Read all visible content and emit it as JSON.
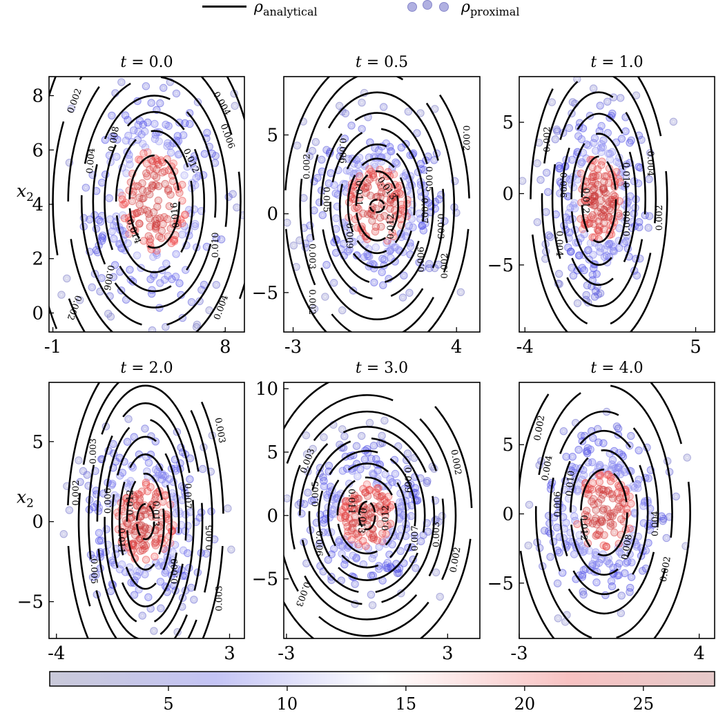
{
  "legend": {
    "line_label_symbol": "ρ",
    "line_label_sub": "analytical",
    "dots_label_symbol": "ρ",
    "dots_label_sub": "proximal"
  },
  "colorbar": {
    "ticks": [
      5,
      10,
      15,
      20,
      25
    ],
    "range": [
      0,
      28
    ],
    "colors": [
      "#c8c8dc",
      "#c6c6f6",
      "#ffffff",
      "#f8c4c4",
      "#e6c8c8"
    ]
  },
  "chart_data": [
    {
      "type": "scatter",
      "title": "t = 0.0",
      "ylabel": "x2",
      "xticks": [
        "-1",
        "8"
      ],
      "yticks": [
        "0",
        "2",
        "4",
        "6",
        "8"
      ],
      "xlim": [
        -1.2,
        9.0
      ],
      "ylim": [
        -0.7,
        8.7
      ],
      "center": [
        4.3,
        4.1
      ],
      "contour_levels": [
        "0.002",
        "0.004",
        "0.006",
        "0.008",
        "0.010",
        "0.012",
        "0.014",
        "0.016"
      ],
      "contour_labels": [
        {
          "text": "0.002",
          "x": 0.15,
          "y": 7.8,
          "rot": -70
        },
        {
          "text": "0.004",
          "x": 1.0,
          "y": 5.6,
          "rot": -85
        },
        {
          "text": "0.008",
          "x": 2.2,
          "y": 6.4,
          "rot": -80
        },
        {
          "text": "0.004",
          "x": 7.8,
          "y": 7.7,
          "rot": 60
        },
        {
          "text": "0.006",
          "x": 8.1,
          "y": 6.5,
          "rot": 70
        },
        {
          "text": "0.012",
          "x": 6.2,
          "y": 5.6,
          "rot": 65
        },
        {
          "text": "0.016",
          "x": 5.4,
          "y": 3.6,
          "rot": -95
        },
        {
          "text": "0.014",
          "x": 3.2,
          "y": 3.0,
          "rot": 70
        },
        {
          "text": "0.010",
          "x": 7.5,
          "y": 2.5,
          "rot": -90
        },
        {
          "text": "0.006",
          "x": 1.9,
          "y": 1.3,
          "rot": 100
        },
        {
          "text": "0.002",
          "x": 0.1,
          "y": 0.2,
          "rot": 110
        },
        {
          "text": "0.004",
          "x": 7.8,
          "y": 0.2,
          "rot": -70
        }
      ],
      "contours": [
        {
          "level": 0.016,
          "a": 1.3,
          "b": 1.7
        },
        {
          "level": 0.014,
          "a": 2.0,
          "b": 2.6
        },
        {
          "level": 0.012,
          "a": 2.6,
          "b": 3.3
        },
        {
          "level": 0.01,
          "a": 3.2,
          "b": 3.9
        },
        {
          "level": 0.008,
          "a": 3.8,
          "b": 4.6
        },
        {
          "level": 0.006,
          "a": 4.5,
          "b": 5.5
        },
        {
          "level": 0.004,
          "a": 5.3,
          "b": 6.6
        },
        {
          "level": 0.002,
          "a": 6.3,
          "b": 8.0
        }
      ],
      "seed": 11,
      "sx": 1.8,
      "sy": 2.0,
      "n_points": 330
    },
    {
      "type": "scatter",
      "title": "t = 0.5",
      "ylabel": "",
      "xticks": [
        "-3",
        "4"
      ],
      "yticks": [
        "−5",
        "0",
        "5"
      ],
      "xlim": [
        -3.4,
        5.0
      ],
      "ylim": [
        -7.5,
        8.7
      ],
      "center": [
        0.6,
        0.5
      ],
      "contour_levels": [
        "0.002",
        "0.003",
        "0.005",
        "0.006",
        "0.007",
        "0.009",
        "0.011",
        "0.012",
        "0.013"
      ],
      "contour_labels": [
        {
          "text": "0.002",
          "x": -2.4,
          "y": 3.0,
          "rot": -90
        },
        {
          "text": "0.006",
          "x": -0.9,
          "y": 4.0,
          "rot": 90
        },
        {
          "text": "0.005",
          "x": -1.6,
          "y": 0.9,
          "rot": 90
        },
        {
          "text": "0.011",
          "x": -0.2,
          "y": 1.3,
          "rot": 90
        },
        {
          "text": "0.013",
          "x": 1.0,
          "y": 1.6,
          "rot": 55
        },
        {
          "text": "0.012",
          "x": 1.2,
          "y": -0.8,
          "rot": -90
        },
        {
          "text": "0.009",
          "x": -0.6,
          "y": -1.4,
          "rot": 90
        },
        {
          "text": "0.003",
          "x": -2.2,
          "y": -2.7,
          "rot": 90
        },
        {
          "text": "0.002",
          "x": -2.2,
          "y": -5.6,
          "rot": 90
        },
        {
          "text": "0.007",
          "x": 2.6,
          "y": 0.2,
          "rot": 90
        },
        {
          "text": "0.005",
          "x": 2.8,
          "y": 2.2,
          "rot": 90
        },
        {
          "text": "0.003",
          "x": 3.3,
          "y": -0.8,
          "rot": 90
        },
        {
          "text": "0.006",
          "x": 2.5,
          "y": -2.9,
          "rot": -90
        },
        {
          "text": "0.002",
          "x": 3.5,
          "y": -3.3,
          "rot": -90
        },
        {
          "text": "0.002",
          "x": 4.4,
          "y": 4.8,
          "rot": 90
        }
      ],
      "contours": [
        {
          "level": 0.013,
          "a": 0.3,
          "b": 0.4
        },
        {
          "level": 0.012,
          "a": 0.9,
          "b": 2.2
        },
        {
          "level": 0.011,
          "a": 1.25,
          "b": 3.0
        },
        {
          "level": 0.009,
          "a": 1.6,
          "b": 3.9
        },
        {
          "level": 0.007,
          "a": 2.0,
          "b": 4.9
        },
        {
          "level": 0.006,
          "a": 2.4,
          "b": 5.9
        },
        {
          "level": 0.005,
          "a": 2.85,
          "b": 7.2
        },
        {
          "level": 0.003,
          "a": 3.3,
          "b": 8.5
        },
        {
          "level": 0.002,
          "a": 3.95,
          "b": 9.6
        }
      ],
      "seed": 23,
      "sx": 1.4,
      "sy": 2.6,
      "n_points": 330
    },
    {
      "type": "scatter",
      "title": "t = 1.0",
      "ylabel": "",
      "xticks": [
        "-4",
        "5"
      ],
      "yticks": [
        "−5",
        "0",
        "5"
      ],
      "xlim": [
        -4.3,
        6.0
      ],
      "ylim": [
        -9.7,
        8.2
      ],
      "center": [
        -0.1,
        -0.4
      ],
      "contour_levels": [
        "0.002",
        "0.004",
        "0.006",
        "0.008",
        "0.010",
        "0.012"
      ],
      "contour_labels": [
        {
          "text": "0.002",
          "x": -2.8,
          "y": 3.8,
          "rot": -90
        },
        {
          "text": "0.006",
          "x": -2.0,
          "y": 0.6,
          "rot": 90
        },
        {
          "text": "0.004",
          "x": -2.2,
          "y": -3.5,
          "rot": 90
        },
        {
          "text": "0.012",
          "x": -0.8,
          "y": -0.5,
          "rot": 90
        },
        {
          "text": "0.010",
          "x": 1.3,
          "y": 1.3,
          "rot": 90
        },
        {
          "text": "0.008",
          "x": 1.4,
          "y": -2.1,
          "rot": -90
        },
        {
          "text": "0.004",
          "x": 2.6,
          "y": 2.1,
          "rot": 90
        },
        {
          "text": "0.002",
          "x": 3.1,
          "y": -1.7,
          "rot": -90
        }
      ],
      "contours": [
        {
          "level": 0.012,
          "a": 0.9,
          "b": 3.0
        },
        {
          "level": 0.01,
          "a": 1.45,
          "b": 4.6
        },
        {
          "level": 0.008,
          "a": 1.95,
          "b": 6.0
        },
        {
          "level": 0.006,
          "a": 2.45,
          "b": 7.5
        },
        {
          "level": 0.004,
          "a": 3.0,
          "b": 8.9
        },
        {
          "level": 0.002,
          "a": 3.6,
          "b": 10.5
        }
      ],
      "seed": 37,
      "sx": 1.3,
      "sy": 3.2,
      "n_points": 330
    },
    {
      "type": "scatter",
      "title": "t = 2.0",
      "ylabel": "x2",
      "xticks": [
        "-4",
        "3"
      ],
      "yticks": [
        "−5",
        "0",
        "5"
      ],
      "xlim": [
        -4.3,
        3.6
      ],
      "ylim": [
        -7.3,
        8.7
      ],
      "center": [
        -0.4,
        0.0
      ],
      "contour_levels": [
        "0.002",
        "0.003",
        "0.005",
        "0.006",
        "0.007",
        "0.009",
        "0.011",
        "0.012",
        "0.013"
      ],
      "contour_labels": [
        {
          "text": "0.002",
          "x": -3.2,
          "y": 1.8,
          "rot": -90
        },
        {
          "text": "0.003",
          "x": -2.5,
          "y": 4.4,
          "rot": -90
        },
        {
          "text": "0.006",
          "x": -1.9,
          "y": 1.3,
          "rot": -90
        },
        {
          "text": "0.012",
          "x": -1.0,
          "y": 1.2,
          "rot": -90
        },
        {
          "text": "0.011",
          "x": -1.4,
          "y": -1.2,
          "rot": 90
        },
        {
          "text": "0.013",
          "x": 0.0,
          "y": 0.5,
          "rot": 90
        },
        {
          "text": "0.005",
          "x": -2.5,
          "y": -3.1,
          "rot": 90
        },
        {
          "text": "0.009",
          "x": 0.8,
          "y": -3.1,
          "rot": -90
        },
        {
          "text": "0.007",
          "x": 1.3,
          "y": 1.6,
          "rot": 90
        },
        {
          "text": "0.005",
          "x": 2.2,
          "y": -1.0,
          "rot": -90
        },
        {
          "text": "0.003",
          "x": 2.6,
          "y": 5.7,
          "rot": 80
        },
        {
          "text": "0.003",
          "x": 2.6,
          "y": -4.8,
          "rot": -90
        }
      ],
      "contours": [
        {
          "level": 0.013,
          "a": 0.35,
          "b": 1.1
        },
        {
          "level": 0.012,
          "a": 0.75,
          "b": 3.0
        },
        {
          "level": 0.011,
          "a": 1.05,
          "b": 4.2
        },
        {
          "level": 0.009,
          "a": 1.35,
          "b": 5.3
        },
        {
          "level": 0.007,
          "a": 1.65,
          "b": 6.4
        },
        {
          "level": 0.006,
          "a": 1.95,
          "b": 7.4
        },
        {
          "level": 0.005,
          "a": 2.3,
          "b": 8.5
        },
        {
          "level": 0.003,
          "a": 2.7,
          "b": 9.5
        },
        {
          "level": 0.002,
          "a": 3.15,
          "b": 10.8
        }
      ],
      "seed": 51,
      "sx": 1.25,
      "sy": 2.7,
      "n_points": 330
    },
    {
      "type": "scatter",
      "title": "t = 3.0",
      "ylabel": "",
      "xticks": [
        "-3",
        "3"
      ],
      "yticks": [
        "−5",
        "0",
        "5",
        "10"
      ],
      "xlim": [
        -3.1,
        4.2
      ],
      "ylim": [
        -9.7,
        10.5
      ],
      "center": [
        0.0,
        0.0
      ],
      "contour_levels": [
        "0.002",
        "0.003",
        "0.005",
        "0.006",
        "0.007",
        "0.009",
        "0.011",
        "0.012",
        "0.013"
      ],
      "contour_labels": [
        {
          "text": "0.003",
          "x": -2.2,
          "y": 4.3,
          "rot": -70
        },
        {
          "text": "0.005",
          "x": -1.9,
          "y": 1.7,
          "rot": -90
        },
        {
          "text": "0.011",
          "x": -0.6,
          "y": 1.1,
          "rot": 90
        },
        {
          "text": "0.013",
          "x": -0.2,
          "y": -0.4,
          "rot": 95
        },
        {
          "text": "0.012",
          "x": 0.7,
          "y": -0.2,
          "rot": -90
        },
        {
          "text": "0.009",
          "x": 1.5,
          "y": 2.8,
          "rot": 90
        },
        {
          "text": "0.006",
          "x": -1.8,
          "y": -2.2,
          "rot": 90
        },
        {
          "text": "0.007",
          "x": 1.8,
          "y": -1.8,
          "rot": -90
        },
        {
          "text": "0.003",
          "x": 2.6,
          "y": -1.5,
          "rot": -90
        },
        {
          "text": "0.002",
          "x": 3.3,
          "y": 4.2,
          "rot": 80
        },
        {
          "text": "0.002",
          "x": 3.3,
          "y": -3.5,
          "rot": -80
        },
        {
          "text": "0.003",
          "x": -2.4,
          "y": -6.2,
          "rot": 110
        }
      ],
      "contours": [
        {
          "level": 0.013,
          "a": 0.3,
          "b": 1.1
        },
        {
          "level": 0.012,
          "a": 1.1,
          "b": 3.0
        },
        {
          "level": 0.011,
          "a": 1.45,
          "b": 4.1
        },
        {
          "level": 0.009,
          "a": 1.8,
          "b": 5.1
        },
        {
          "level": 0.007,
          "a": 2.15,
          "b": 6.1
        },
        {
          "level": 0.006,
          "a": 2.5,
          "b": 7.0
        },
        {
          "level": 0.005,
          "a": 2.85,
          "b": 8.2
        },
        {
          "level": 0.003,
          "a": 3.3,
          "b": 9.5
        },
        {
          "level": 0.002,
          "a": 3.9,
          "b": 11.3
        }
      ],
      "seed": 67,
      "sx": 1.1,
      "sy": 2.7,
      "n_points": 330
    },
    {
      "type": "scatter",
      "title": "t = 4.0",
      "ylabel": "",
      "xticks": [
        "-3",
        "4"
      ],
      "yticks": [
        "−5",
        "0",
        "5"
      ],
      "xlim": [
        -3.0,
        4.6
      ],
      "ylim": [
        -9.0,
        9.5
      ],
      "center": [
        0.3,
        0.1
      ],
      "contour_levels": [
        "0.002",
        "0.004",
        "0.006",
        "0.008",
        "0.010",
        "0.012"
      ],
      "contour_labels": [
        {
          "text": "0.002",
          "x": -2.2,
          "y": 6.2,
          "rot": -80
        },
        {
          "text": "0.004",
          "x": -1.9,
          "y": 3.3,
          "rot": -80
        },
        {
          "text": "0.006",
          "x": -1.5,
          "y": 0.7,
          "rot": -90
        },
        {
          "text": "0.010",
          "x": -1.0,
          "y": 2.2,
          "rot": -85
        },
        {
          "text": "0.012",
          "x": -0.5,
          "y": -1.0,
          "rot": 90
        },
        {
          "text": "0.008",
          "x": 1.2,
          "y": -2.4,
          "rot": -80
        },
        {
          "text": "0.004",
          "x": 2.3,
          "y": -0.7,
          "rot": -90
        },
        {
          "text": "0.002",
          "x": 2.7,
          "y": -4.0,
          "rot": -80
        }
      ],
      "contours": [
        {
          "level": 0.012,
          "a": 0.9,
          "b": 3.1
        },
        {
          "level": 0.01,
          "a": 1.3,
          "b": 4.5
        },
        {
          "level": 0.008,
          "a": 1.7,
          "b": 5.9
        },
        {
          "level": 0.006,
          "a": 2.1,
          "b": 7.3
        },
        {
          "level": 0.004,
          "a": 2.65,
          "b": 9.2
        },
        {
          "level": 0.002,
          "a": 3.35,
          "b": 11.2
        }
      ],
      "seed": 79,
      "sx": 1.2,
      "sy": 3.0,
      "n_points": 330
    }
  ]
}
